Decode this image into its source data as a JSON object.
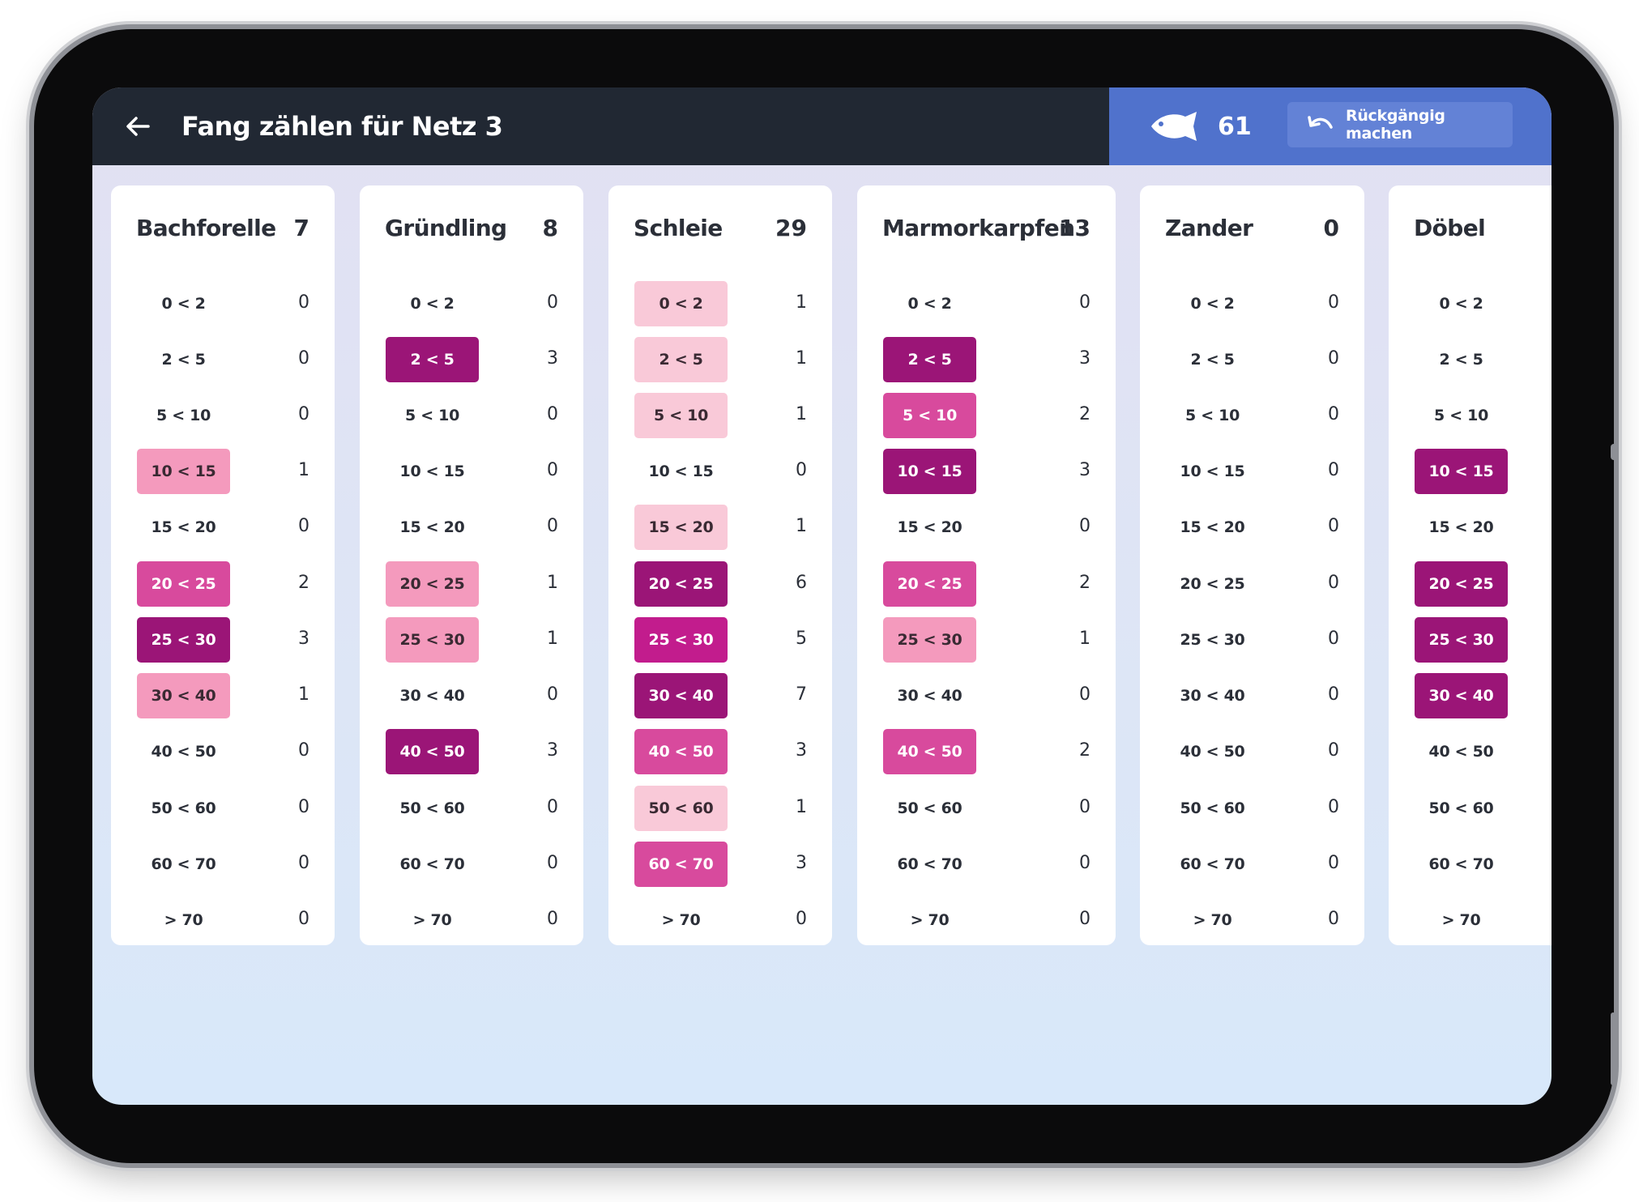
{
  "header": {
    "title": "Fang zählen für Netz 3",
    "total": "61",
    "undo_label": "Rückgängig machen"
  },
  "colors": {
    "header_dark": "#212833",
    "header_blue": "#5072cc",
    "level_1": "#f9c9d8",
    "level_2": "#f49abd",
    "level_3": "#d84a9d",
    "level_4": "#c21c8d",
    "level_5": "#9b1577"
  },
  "icons": {
    "back": "arrow-left-icon",
    "fish": "fish-icon",
    "undo": "undo-icon"
  },
  "species": [
    {
      "name": "Bachforelle",
      "count": "7",
      "rows": [
        {
          "label": "0 < 2",
          "count": "0"
        },
        {
          "label": "2 < 5",
          "count": "0"
        },
        {
          "label": "5 < 10",
          "count": "0"
        },
        {
          "label": "10 < 15",
          "count": "1"
        },
        {
          "label": "15 < 20",
          "count": "0"
        },
        {
          "label": "20 < 25",
          "count": "2"
        },
        {
          "label": "25 < 30",
          "count": "3"
        },
        {
          "label": "30 < 40",
          "count": "1"
        },
        {
          "label": "40 < 50",
          "count": "0"
        },
        {
          "label": "50 < 60",
          "count": "0"
        },
        {
          "label": "60 < 70",
          "count": "0"
        },
        {
          "label": "> 70",
          "count": "0"
        }
      ]
    },
    {
      "name": "Gründling",
      "count": "8",
      "rows": [
        {
          "label": "0 < 2",
          "count": "0"
        },
        {
          "label": "2 < 5",
          "count": "3"
        },
        {
          "label": "5 < 10",
          "count": "0"
        },
        {
          "label": "10 < 15",
          "count": "0"
        },
        {
          "label": "15 < 20",
          "count": "0"
        },
        {
          "label": "20 < 25",
          "count": "1"
        },
        {
          "label": "25 < 30",
          "count": "1"
        },
        {
          "label": "30 < 40",
          "count": "0"
        },
        {
          "label": "40 < 50",
          "count": "3"
        },
        {
          "label": "50 < 60",
          "count": "0"
        },
        {
          "label": "60 < 70",
          "count": "0"
        },
        {
          "label": "> 70",
          "count": "0"
        }
      ]
    },
    {
      "name": "Schleie",
      "count": "29",
      "rows": [
        {
          "label": "0 < 2",
          "count": "1"
        },
        {
          "label": "2 < 5",
          "count": "1"
        },
        {
          "label": "5 < 10",
          "count": "1"
        },
        {
          "label": "10 < 15",
          "count": "0"
        },
        {
          "label": "15 < 20",
          "count": "1"
        },
        {
          "label": "20 < 25",
          "count": "6"
        },
        {
          "label": "25 < 30",
          "count": "5"
        },
        {
          "label": "30 < 40",
          "count": "7"
        },
        {
          "label": "40 < 50",
          "count": "3"
        },
        {
          "label": "50 < 60",
          "count": "1"
        },
        {
          "label": "60 < 70",
          "count": "3"
        },
        {
          "label": "> 70",
          "count": "0"
        }
      ]
    },
    {
      "name": "Marmorkarpfen",
      "count": "13",
      "rows": [
        {
          "label": "0 < 2",
          "count": "0"
        },
        {
          "label": "2 < 5",
          "count": "3"
        },
        {
          "label": "5 < 10",
          "count": "2"
        },
        {
          "label": "10 < 15",
          "count": "3"
        },
        {
          "label": "15 < 20",
          "count": "0"
        },
        {
          "label": "20 < 25",
          "count": "2"
        },
        {
          "label": "25 < 30",
          "count": "1"
        },
        {
          "label": "30 < 40",
          "count": "0"
        },
        {
          "label": "40 < 50",
          "count": "2"
        },
        {
          "label": "50 < 60",
          "count": "0"
        },
        {
          "label": "60 < 70",
          "count": "0"
        },
        {
          "label": "> 70",
          "count": "0"
        }
      ]
    },
    {
      "name": "Zander",
      "count": "0",
      "rows": [
        {
          "label": "0 < 2",
          "count": "0"
        },
        {
          "label": "2 < 5",
          "count": "0"
        },
        {
          "label": "5 < 10",
          "count": "0"
        },
        {
          "label": "10 < 15",
          "count": "0"
        },
        {
          "label": "15 < 20",
          "count": "0"
        },
        {
          "label": "20 < 25",
          "count": "0"
        },
        {
          "label": "25 < 30",
          "count": "0"
        },
        {
          "label": "30 < 40",
          "count": "0"
        },
        {
          "label": "40 < 50",
          "count": "0"
        },
        {
          "label": "50 < 60",
          "count": "0"
        },
        {
          "label": "60 < 70",
          "count": "0"
        },
        {
          "label": "> 70",
          "count": "0"
        }
      ]
    },
    {
      "name": "Döbel",
      "count": "",
      "rows": [
        {
          "label": "0 < 2",
          "count": ""
        },
        {
          "label": "2 < 5",
          "count": ""
        },
        {
          "label": "5 < 10",
          "count": ""
        },
        {
          "label": "10 < 15",
          "count": ""
        },
        {
          "label": "15 < 20",
          "count": ""
        },
        {
          "label": "20 < 25",
          "count": ""
        },
        {
          "label": "25 < 30",
          "count": ""
        },
        {
          "label": "30 < 40",
          "count": ""
        },
        {
          "label": "40 < 50",
          "count": ""
        },
        {
          "label": "50 < 60",
          "count": ""
        },
        {
          "label": "60 < 70",
          "count": ""
        },
        {
          "label": "> 70",
          "count": ""
        }
      ]
    }
  ]
}
